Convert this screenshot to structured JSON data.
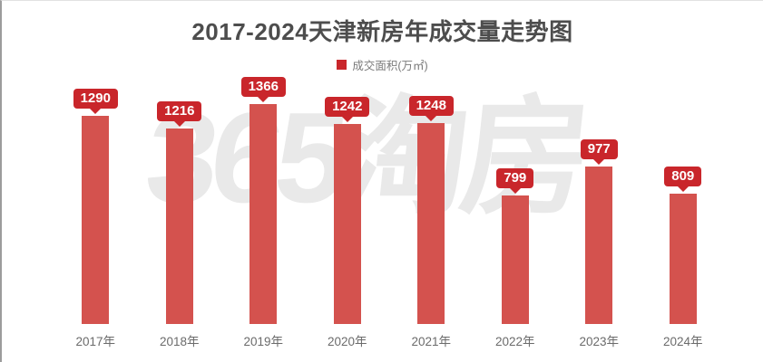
{
  "title": "2017-2024天津新房年成交量走势图",
  "legend": {
    "label": "成交面积(万㎡)",
    "marker_color": "#c9262b"
  },
  "watermark": {
    "text": "365淘房",
    "color": "#e9e9e9"
  },
  "colors": {
    "bar": "#d4524e",
    "callout_bubble": "#c9262b",
    "title_text": "#4d4d4d",
    "axis_text": "#6b6b6b"
  },
  "chart_data": {
    "type": "bar",
    "title": "2017-2024天津新房年成交量走势图",
    "categories": [
      "2017年",
      "2018年",
      "2019年",
      "2020年",
      "2021年",
      "2022年",
      "2023年",
      "2024年"
    ],
    "values": [
      1290,
      1216,
      1366,
      1242,
      1248,
      799,
      977,
      809
    ],
    "series_name": "成交面积(万㎡)",
    "xlabel": "",
    "ylabel": "成交面积(万㎡)",
    "ylim": [
      0,
      1400
    ],
    "grid": false,
    "legend_position": "top",
    "data_labels": true,
    "bar_color": "#d4524e",
    "label_bubble_color": "#c9262b"
  }
}
